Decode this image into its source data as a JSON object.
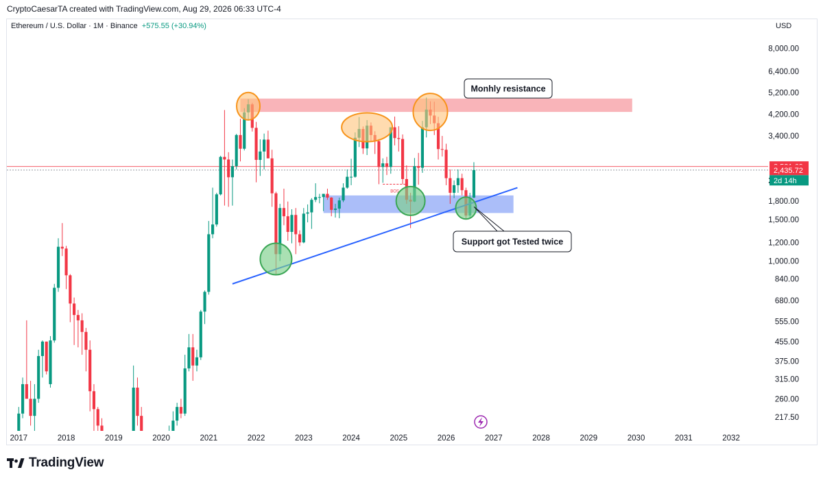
{
  "header": {
    "attribution": "CryptoCaesarTA created with TradingView.com, Aug 29, 2026 06:33 UTC-4"
  },
  "legend": {
    "symbol": "Ethereum / U.S. Dollar · 1M · Binance",
    "change": "+575.55 (+30.94%)"
  },
  "footer": {
    "brand": "TradingView",
    "logo_icon": "tradingview-logo-icon"
  },
  "chart_data": {
    "type": "candlestick",
    "title": "Ethereum / U.S. Dollar · 1M · Binance",
    "currency": "USD",
    "y_scale": "log",
    "ylim": [
      190,
      9500
    ],
    "xlim": [
      "2016-10",
      "2032-10"
    ],
    "x_ticks": [
      "2017",
      "2018",
      "2019",
      "2020",
      "2021",
      "2022",
      "2023",
      "2024",
      "2025",
      "2026",
      "2027",
      "2028",
      "2029",
      "2030",
      "2031",
      "2032"
    ],
    "y_ticks": [
      "217.50",
      "260.00",
      "315.00",
      "375.00",
      "455.00",
      "555.00",
      "680.00",
      "840.00",
      "1,000.00",
      "1,200.00",
      "1,500.00",
      "1,800.00",
      "2,200.00",
      "2,435.72",
      "2,521.69",
      "3,400.00",
      "4,200.00",
      "5,200.00",
      "6,400.00",
      "8,000.00"
    ],
    "price_labels": [
      {
        "text": "2,521.69",
        "color": "#f23645"
      },
      {
        "text": "2,435.72",
        "color": "#f23645"
      },
      {
        "text": "2d 14h",
        "color": "#089981"
      }
    ],
    "colors": {
      "up": "#089981",
      "down": "#f23645",
      "trendline": "#2962ff"
    },
    "candles": [
      {
        "t": "2016-12",
        "o": 175,
        "h": 190,
        "l": 160,
        "c": 180
      },
      {
        "t": "2017-01",
        "o": 180,
        "h": 240,
        "l": 175,
        "c": 225
      },
      {
        "t": "2017-02",
        "o": 225,
        "h": 320,
        "l": 215,
        "c": 300
      },
      {
        "t": "2017-03",
        "o": 300,
        "h": 560,
        "l": 280,
        "c": 260
      },
      {
        "t": "2017-04",
        "o": 260,
        "h": 310,
        "l": 200,
        "c": 220
      },
      {
        "t": "2017-05",
        "o": 220,
        "h": 300,
        "l": 180,
        "c": 260
      },
      {
        "t": "2017-06",
        "o": 260,
        "h": 420,
        "l": 250,
        "c": 395
      },
      {
        "t": "2017-07",
        "o": 395,
        "h": 460,
        "l": 320,
        "c": 455
      },
      {
        "t": "2017-08",
        "o": 455,
        "h": 455,
        "l": 330,
        "c": 340
      },
      {
        "t": "2017-09",
        "o": 300,
        "h": 480,
        "l": 290,
        "c": 460
      },
      {
        "t": "2017-10",
        "o": 460,
        "h": 800,
        "l": 450,
        "c": 770
      },
      {
        "t": "2017-11",
        "o": 770,
        "h": 1250,
        "l": 740,
        "c": 1150
      },
      {
        "t": "2017-12",
        "o": 1150,
        "h": 1450,
        "l": 1050,
        "c": 1130
      },
      {
        "t": "2018-01",
        "o": 1130,
        "h": 1160,
        "l": 760,
        "c": 870
      },
      {
        "t": "2018-02",
        "o": 870,
        "h": 880,
        "l": 550,
        "c": 660
      },
      {
        "t": "2018-03",
        "o": 660,
        "h": 700,
        "l": 440,
        "c": 590
      },
      {
        "t": "2018-04",
        "o": 590,
        "h": 620,
        "l": 430,
        "c": 560
      },
      {
        "t": "2018-05",
        "o": 560,
        "h": 600,
        "l": 400,
        "c": 500
      },
      {
        "t": "2018-06",
        "o": 500,
        "h": 520,
        "l": 340,
        "c": 420
      },
      {
        "t": "2018-07",
        "o": 420,
        "h": 460,
        "l": 230,
        "c": 280
      },
      {
        "t": "2018-08",
        "o": 280,
        "h": 300,
        "l": 160,
        "c": 235
      },
      {
        "t": "2018-09",
        "o": 235,
        "h": 240,
        "l": 180,
        "c": 200
      },
      {
        "t": "2018-10",
        "o": 200,
        "h": 215,
        "l": 175,
        "c": 190
      },
      {
        "t": "2019-05",
        "o": 160,
        "h": 190,
        "l": 150,
        "c": 180
      },
      {
        "t": "2019-06",
        "o": 180,
        "h": 360,
        "l": 170,
        "c": 290
      },
      {
        "t": "2019-07",
        "o": 290,
        "h": 320,
        "l": 200,
        "c": 220
      },
      {
        "t": "2019-08",
        "o": 220,
        "h": 240,
        "l": 160,
        "c": 180
      },
      {
        "t": "2020-03",
        "o": 160,
        "h": 200,
        "l": 150,
        "c": 190
      },
      {
        "t": "2020-04",
        "o": 190,
        "h": 230,
        "l": 170,
        "c": 210
      },
      {
        "t": "2020-05",
        "o": 210,
        "h": 250,
        "l": 200,
        "c": 240
      },
      {
        "t": "2020-06",
        "o": 240,
        "h": 260,
        "l": 215,
        "c": 225
      },
      {
        "t": "2020-07",
        "o": 225,
        "h": 400,
        "l": 220,
        "c": 350
      },
      {
        "t": "2020-08",
        "o": 350,
        "h": 490,
        "l": 340,
        "c": 430
      },
      {
        "t": "2020-09",
        "o": 430,
        "h": 490,
        "l": 310,
        "c": 360
      },
      {
        "t": "2020-10",
        "o": 360,
        "h": 420,
        "l": 340,
        "c": 390
      },
      {
        "t": "2020-11",
        "o": 390,
        "h": 620,
        "l": 380,
        "c": 610
      },
      {
        "t": "2020-12",
        "o": 610,
        "h": 750,
        "l": 540,
        "c": 740
      },
      {
        "t": "2021-01",
        "o": 740,
        "h": 1480,
        "l": 720,
        "c": 1300
      },
      {
        "t": "2021-02",
        "o": 1300,
        "h": 2050,
        "l": 1250,
        "c": 1430
      },
      {
        "t": "2021-03",
        "o": 1430,
        "h": 1950,
        "l": 1400,
        "c": 1920
      },
      {
        "t": "2021-04",
        "o": 1920,
        "h": 2800,
        "l": 1900,
        "c": 2770
      },
      {
        "t": "2021-05",
        "o": 2770,
        "h": 4380,
        "l": 1720,
        "c": 2700
      },
      {
        "t": "2021-06",
        "o": 2700,
        "h": 2900,
        "l": 1700,
        "c": 2270
      },
      {
        "t": "2021-07",
        "o": 2270,
        "h": 2700,
        "l": 1720,
        "c": 2530
      },
      {
        "t": "2021-08",
        "o": 2530,
        "h": 3470,
        "l": 2450,
        "c": 3430
      },
      {
        "t": "2021-09",
        "o": 3430,
        "h": 4020,
        "l": 2650,
        "c": 3000
      },
      {
        "t": "2021-10",
        "o": 3000,
        "h": 4460,
        "l": 2950,
        "c": 4280
      },
      {
        "t": "2021-11",
        "o": 4280,
        "h": 4870,
        "l": 3950,
        "c": 4630
      },
      {
        "t": "2021-12",
        "o": 4630,
        "h": 4700,
        "l": 3550,
        "c": 3680
      },
      {
        "t": "2022-01",
        "o": 3680,
        "h": 3900,
        "l": 2160,
        "c": 2690
      },
      {
        "t": "2022-02",
        "o": 2690,
        "h": 3290,
        "l": 2300,
        "c": 2920
      },
      {
        "t": "2022-03",
        "o": 2920,
        "h": 3480,
        "l": 2450,
        "c": 3280
      },
      {
        "t": "2022-04",
        "o": 3280,
        "h": 3580,
        "l": 2750,
        "c": 2730
      },
      {
        "t": "2022-05",
        "o": 2730,
        "h": 2970,
        "l": 1700,
        "c": 1940
      },
      {
        "t": "2022-06",
        "o": 1940,
        "h": 1970,
        "l": 880,
        "c": 1070
      },
      {
        "t": "2022-07",
        "o": 1070,
        "h": 1750,
        "l": 1000,
        "c": 1680
      },
      {
        "t": "2022-08",
        "o": 1680,
        "h": 2030,
        "l": 1420,
        "c": 1550
      },
      {
        "t": "2022-09",
        "o": 1550,
        "h": 1790,
        "l": 1220,
        "c": 1330
      },
      {
        "t": "2022-10",
        "o": 1330,
        "h": 1660,
        "l": 1190,
        "c": 1570
      },
      {
        "t": "2022-11",
        "o": 1570,
        "h": 1680,
        "l": 1070,
        "c": 1300
      },
      {
        "t": "2022-12",
        "o": 1300,
        "h": 1350,
        "l": 1160,
        "c": 1200
      },
      {
        "t": "2023-01",
        "o": 1200,
        "h": 1680,
        "l": 1190,
        "c": 1590
      },
      {
        "t": "2023-02",
        "o": 1590,
        "h": 1740,
        "l": 1460,
        "c": 1610
      },
      {
        "t": "2023-03",
        "o": 1610,
        "h": 1850,
        "l": 1370,
        "c": 1820
      },
      {
        "t": "2023-04",
        "o": 1820,
        "h": 2140,
        "l": 1780,
        "c": 1870
      },
      {
        "t": "2023-05",
        "o": 1870,
        "h": 1930,
        "l": 1760,
        "c": 1870
      },
      {
        "t": "2023-06",
        "o": 1870,
        "h": 1930,
        "l": 1630,
        "c": 1930
      },
      {
        "t": "2023-07",
        "o": 1930,
        "h": 2030,
        "l": 1820,
        "c": 1860
      },
      {
        "t": "2023-08",
        "o": 1860,
        "h": 1870,
        "l": 1550,
        "c": 1650
      },
      {
        "t": "2023-09",
        "o": 1650,
        "h": 1750,
        "l": 1530,
        "c": 1670
      },
      {
        "t": "2023-10",
        "o": 1670,
        "h": 1860,
        "l": 1520,
        "c": 1810
      },
      {
        "t": "2023-11",
        "o": 1810,
        "h": 2140,
        "l": 1780,
        "c": 2050
      },
      {
        "t": "2023-12",
        "o": 2050,
        "h": 2450,
        "l": 2030,
        "c": 2280
      },
      {
        "t": "2024-01",
        "o": 2280,
        "h": 2720,
        "l": 2100,
        "c": 2280
      },
      {
        "t": "2024-02",
        "o": 2280,
        "h": 3520,
        "l": 2260,
        "c": 3340
      },
      {
        "t": "2024-03",
        "o": 3340,
        "h": 4090,
        "l": 3050,
        "c": 3640
      },
      {
        "t": "2024-04",
        "o": 3640,
        "h": 3730,
        "l": 2850,
        "c": 3010
      },
      {
        "t": "2024-05",
        "o": 3010,
        "h": 3970,
        "l": 2820,
        "c": 3760
      },
      {
        "t": "2024-06",
        "o": 3760,
        "h": 3880,
        "l": 3240,
        "c": 3430
      },
      {
        "t": "2024-07",
        "o": 3430,
        "h": 3560,
        "l": 2850,
        "c": 3230
      },
      {
        "t": "2024-08",
        "o": 3230,
        "h": 3300,
        "l": 2120,
        "c": 2510
      },
      {
        "t": "2024-09",
        "o": 2510,
        "h": 2730,
        "l": 2150,
        "c": 2600
      },
      {
        "t": "2024-10",
        "o": 2600,
        "h": 2770,
        "l": 2320,
        "c": 2510
      },
      {
        "t": "2024-11",
        "o": 2510,
        "h": 3680,
        "l": 2350,
        "c": 3700
      },
      {
        "t": "2024-12",
        "o": 3700,
        "h": 4110,
        "l": 3100,
        "c": 3330
      },
      {
        "t": "2025-01",
        "o": 3330,
        "h": 3740,
        "l": 2920,
        "c": 3300
      },
      {
        "t": "2025-02",
        "o": 3300,
        "h": 3450,
        "l": 2120,
        "c": 2230
      },
      {
        "t": "2025-03",
        "o": 2230,
        "h": 2550,
        "l": 1750,
        "c": 1820
      },
      {
        "t": "2025-04",
        "o": 1820,
        "h": 1950,
        "l": 1380,
        "c": 1790
      },
      {
        "t": "2025-05",
        "o": 1790,
        "h": 2740,
        "l": 1780,
        "c": 2530
      },
      {
        "t": "2025-06",
        "o": 2530,
        "h": 2880,
        "l": 2110,
        "c": 2490
      },
      {
        "t": "2025-07",
        "o": 2490,
        "h": 3940,
        "l": 2370,
        "c": 3700
      },
      {
        "t": "2025-08",
        "o": 3700,
        "h": 4950,
        "l": 3350,
        "c": 4400
      },
      {
        "t": "2025-09",
        "o": 4400,
        "h": 4770,
        "l": 3820,
        "c": 4150
      },
      {
        "t": "2025-10",
        "o": 4150,
        "h": 4750,
        "l": 3430,
        "c": 3850
      },
      {
        "t": "2025-11",
        "o": 3850,
        "h": 4100,
        "l": 2700,
        "c": 2990
      },
      {
        "t": "2025-12",
        "o": 2990,
        "h": 3400,
        "l": 2780,
        "c": 2970
      },
      {
        "t": "2026-01",
        "o": 2970,
        "h": 3150,
        "l": 2100,
        "c": 2250
      },
      {
        "t": "2026-02",
        "o": 2250,
        "h": 2450,
        "l": 1750,
        "c": 1950
      },
      {
        "t": "2026-03",
        "o": 1950,
        "h": 2200,
        "l": 1850,
        "c": 2100
      },
      {
        "t": "2026-04",
        "o": 2100,
        "h": 2450,
        "l": 1950,
        "c": 2250
      },
      {
        "t": "2026-05",
        "o": 2250,
        "h": 2350,
        "l": 1900,
        "c": 2000
      },
      {
        "t": "2026-06",
        "o": 2000,
        "h": 2050,
        "l": 1500,
        "c": 1560
      },
      {
        "t": "2026-07",
        "o": 1560,
        "h": 1950,
        "l": 1520,
        "c": 1860
      },
      {
        "t": "2026-08",
        "o": 1860,
        "h": 2630,
        "l": 1850,
        "c": 2435.72
      }
    ],
    "annotations": [
      {
        "text": "Monhly resistance"
      },
      {
        "text": "Support got Tested twice"
      },
      {
        "text": "BOS"
      }
    ]
  }
}
